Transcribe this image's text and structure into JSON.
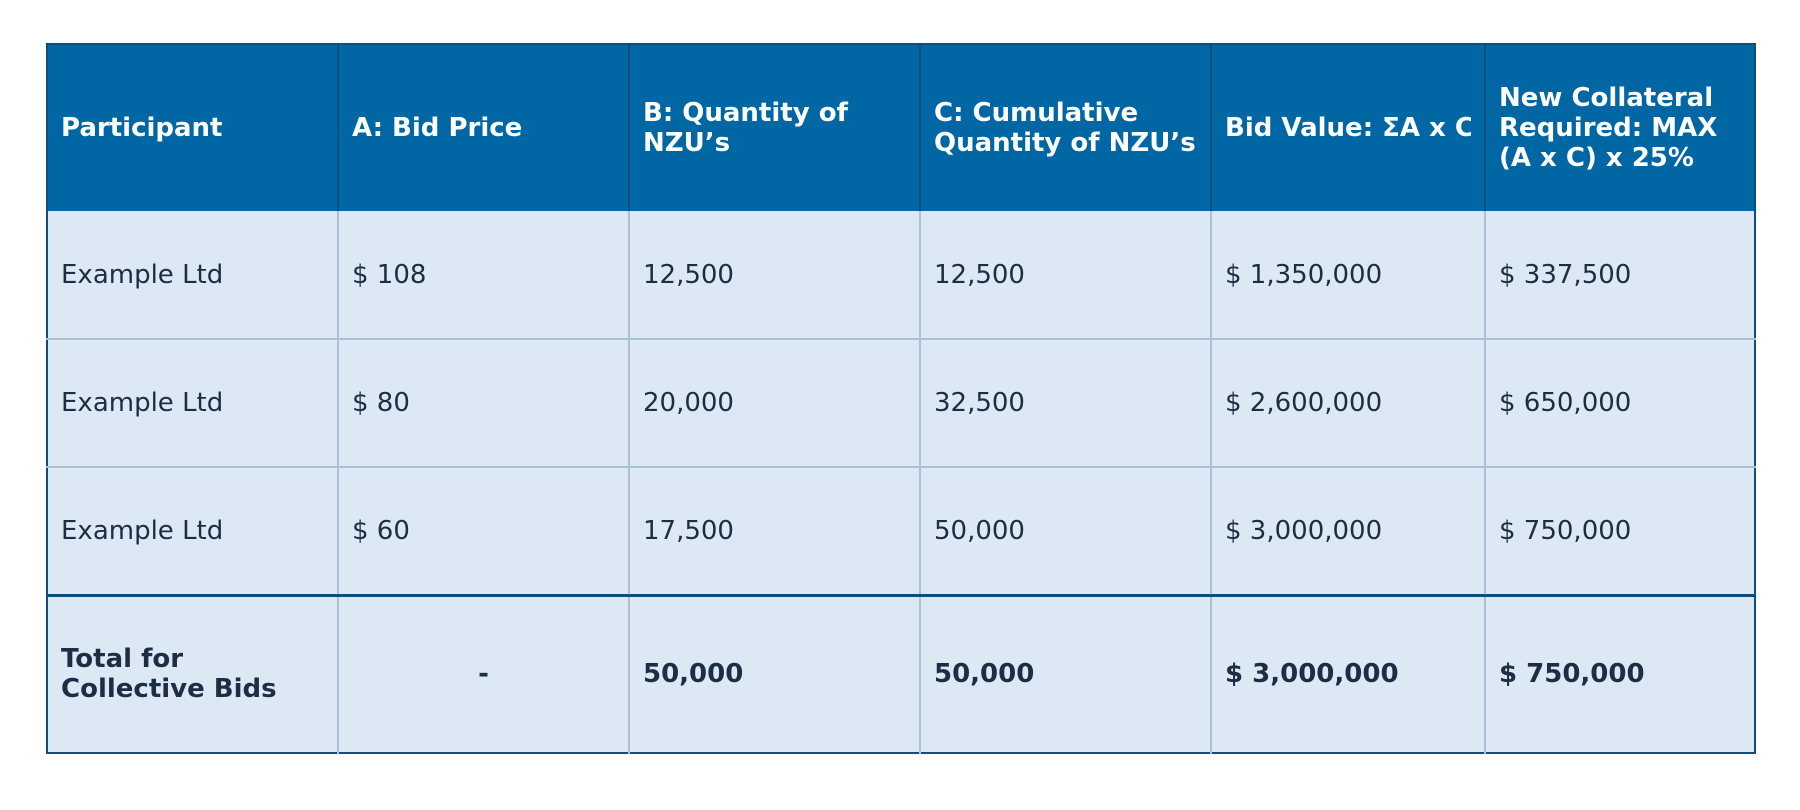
{
  "table": {
    "headers": [
      "Participant",
      "A: Bid Price",
      "B: Quantity of NZU’s",
      "C: Cumulative Quantity of NZU’s",
      "Bid Value: ΣA x C",
      "New Collateral Required: MAX (A x C) x 25%"
    ],
    "rows": [
      [
        "Example Ltd",
        "$ 108",
        "12,500",
        "12,500",
        "$ 1,350,000",
        "$ 337,500"
      ],
      [
        "Example Ltd",
        "$ 80",
        "20,000",
        "32,500",
        "$ 2,600,000",
        "$ 650,000"
      ],
      [
        "Example Ltd",
        "$ 60",
        "17,500",
        "50,000",
        "$ 3,000,000",
        "$ 750,000"
      ]
    ],
    "total": [
      "Total for Collective Bids",
      "-",
      "50,000",
      "50,000",
      "$ 3,000,000",
      "$ 750,000"
    ]
  },
  "colors": {
    "header_bg": "#0166a4",
    "header_text": "#ffffff",
    "cell_bg": "#dce9f5",
    "cell_text": "#1b2e44",
    "border": "#0d4f7a"
  }
}
